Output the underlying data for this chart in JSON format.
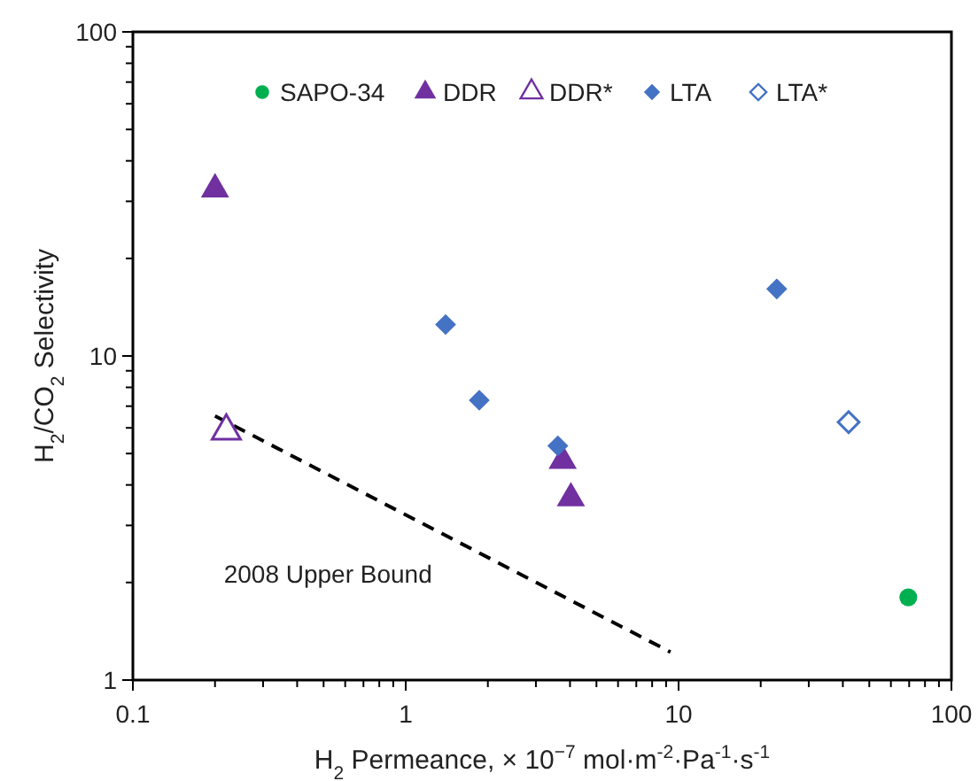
{
  "chart_data": {
    "type": "scatter",
    "xlabel": "H$_{2}$ Permeance, × 10$^{−7}$ mol·m$^{-2}$·Pa$^{-1}$·s$^{-1}$",
    "ylabel": "H$_{2}$/CO$_{2}$ Selectivity",
    "log": "xy",
    "xlim": [
      0.1,
      100
    ],
    "ylim": [
      1,
      100
    ],
    "xticks": [
      0.1,
      {
        "value": 0.2,
        "label": null
      },
      {
        "value": 0.3,
        "label": null
      },
      {
        "value": 0.4,
        "label": null
      },
      {
        "value": 0.5,
        "label": null
      },
      {
        "value": 0.6,
        "label": null
      },
      {
        "value": 0.7,
        "label": null
      },
      {
        "value": 0.8,
        "label": null
      },
      {
        "value": 0.9,
        "label": null
      },
      1,
      {
        "value": 2,
        "label": null
      },
      {
        "value": 3,
        "label": null
      },
      {
        "value": 4,
        "label": null
      },
      {
        "value": 5,
        "label": null
      },
      {
        "value": 6,
        "label": null
      },
      {
        "value": 7,
        "label": null
      },
      {
        "value": 8,
        "label": null
      },
      {
        "value": 9,
        "label": null
      },
      10,
      {
        "value": 20,
        "label": null
      },
      {
        "value": 30,
        "label": null
      },
      {
        "value": 40,
        "label": null
      },
      {
        "value": 50,
        "label": null
      },
      {
        "value": 60,
        "label": null
      },
      {
        "value": 70,
        "label": null
      },
      {
        "value": 80,
        "label": null
      },
      {
        "value": 90,
        "label": null
      },
      100
    ],
    "yticks": [
      1,
      {
        "value": 2,
        "label": null
      },
      {
        "value": 3,
        "label": null
      },
      {
        "value": 4,
        "label": null
      },
      {
        "value": 5,
        "label": null
      },
      {
        "value": 6,
        "label": null
      },
      {
        "value": 7,
        "label": null
      },
      {
        "value": 8,
        "label": null
      },
      {
        "value": 9,
        "label": null
      },
      10,
      {
        "value": 20,
        "label": null
      },
      {
        "value": 30,
        "label": null
      },
      {
        "value": 40,
        "label": null
      },
      {
        "value": 50,
        "label": null
      },
      {
        "value": 60,
        "label": null
      },
      {
        "value": 70,
        "label": null
      },
      {
        "value": 80,
        "label": null
      },
      {
        "value": 90,
        "label": null
      },
      100
    ],
    "grid": false,
    "legend": "top",
    "series": [
      {
        "name": "SAPO-34",
        "color": "#00b050",
        "marker": "circle",
        "x": [
          69.5
        ],
        "values": [
          1.8
        ]
      },
      {
        "name": "DDR",
        "color": "#7030a0",
        "marker": "triangle",
        "x": [
          0.2,
          3.76,
          4.03
        ],
        "values": [
          32.7,
          4.75,
          3.64
        ]
      },
      {
        "name": "DDR*",
        "color": "#7030a0",
        "marker": "triangle-open",
        "x": [
          0.22
        ],
        "values": [
          5.87
        ]
      },
      {
        "name": "LTA",
        "color": "#4472c4",
        "marker": "diamond",
        "x": [
          1.4,
          1.86,
          3.61,
          22.9
        ],
        "values": [
          12.5,
          7.3,
          5.28,
          16.1
        ]
      },
      {
        "name": "LTA*",
        "color": "#4472c4",
        "marker": "diamond-open",
        "x": [
          42
        ],
        "values": [
          6.25
        ]
      },
      {
        "name": "2008 Upper Bound",
        "type": "line",
        "color": "#000000",
        "line_style": "dashed",
        "x": [
          0.2,
          9.34
        ],
        "values": [
          6.53,
          1.22
        ]
      }
    ]
  }
}
